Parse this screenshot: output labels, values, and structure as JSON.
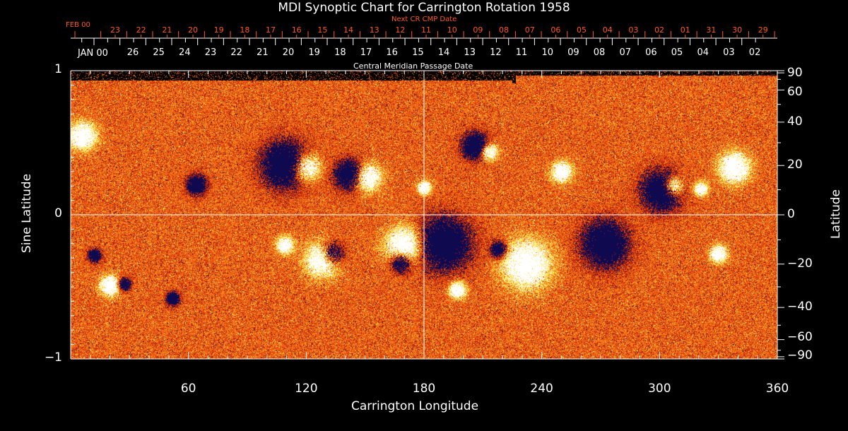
{
  "chart_data": {
    "type": "heatmap",
    "title": "MDI Synoptic Chart for Carrington Rotation 1958",
    "xlabel": "Carrington Longitude",
    "ylabel": "Sine Latitude",
    "y2label": "Latitude",
    "xlim": [
      0,
      360
    ],
    "ylim": [
      -1,
      1
    ],
    "x_ticks": [
      "60",
      "120",
      "180",
      "240",
      "300",
      "360"
    ],
    "x_tick_values": [
      60,
      120,
      180,
      240,
      300,
      360
    ],
    "y_ticks": [
      "1",
      "0",
      "−1"
    ],
    "y_tick_values": [
      1,
      0,
      -1
    ],
    "lat_ticks": [
      "90",
      "60",
      "40",
      "20",
      "0",
      "−20",
      "−40",
      "−60",
      "−90"
    ],
    "lat_tick_values": [
      90,
      60,
      40,
      20,
      0,
      -20,
      -40,
      -60,
      -90
    ],
    "top_axis": {
      "label": "Next CR CMP Date",
      "month_label": "FEB 00",
      "days": [
        "23",
        "22",
        "21",
        "20",
        "19",
        "18",
        "17",
        "16",
        "15",
        "14",
        "13",
        "12",
        "11",
        "10",
        "09",
        "08",
        "07",
        "06",
        "05",
        "04",
        "03",
        "02",
        "01",
        "31",
        "30",
        "29"
      ]
    },
    "second_axis": {
      "label": "Central Meridian Passage Date",
      "month_label": "JAN 00",
      "days": [
        "26",
        "25",
        "24",
        "23",
        "22",
        "21",
        "20",
        "19",
        "18",
        "17",
        "16",
        "15",
        "14",
        "13",
        "12",
        "11",
        "10",
        "09",
        "08",
        "07",
        "06",
        "05",
        "04",
        "03",
        "02"
      ]
    },
    "colors": {
      "background_field": "#e04a10",
      "positive": "#ffffff",
      "negative": "#0a0a50",
      "axis": "#ffffff",
      "date_axis": "#ff5a1a"
    },
    "active_regions": [
      {
        "lon": 6,
        "sinlat": 0.55,
        "polarity": "positive",
        "size": 8
      },
      {
        "lon": 64,
        "sinlat": 0.21,
        "polarity": "negative",
        "size": 6
      },
      {
        "lon": 109,
        "sinlat": 0.35,
        "polarity": "negative",
        "size": 14
      },
      {
        "lon": 120,
        "sinlat": 0.33,
        "polarity": "positive",
        "size": 8
      },
      {
        "lon": 142,
        "sinlat": 0.28,
        "polarity": "negative",
        "size": 9
      },
      {
        "lon": 151,
        "sinlat": 0.26,
        "polarity": "positive",
        "size": 8
      },
      {
        "lon": 180,
        "sinlat": 0.19,
        "polarity": "positive",
        "size": 4
      },
      {
        "lon": 206,
        "sinlat": 0.48,
        "polarity": "negative",
        "size": 8
      },
      {
        "lon": 213,
        "sinlat": 0.44,
        "polarity": "positive",
        "size": 5
      },
      {
        "lon": 250,
        "sinlat": 0.3,
        "polarity": "positive",
        "size": 6
      },
      {
        "lon": 301,
        "sinlat": 0.17,
        "polarity": "negative",
        "size": 12
      },
      {
        "lon": 307,
        "sinlat": 0.2,
        "polarity": "positive",
        "size": 6
      },
      {
        "lon": 321,
        "sinlat": 0.18,
        "polarity": "positive",
        "size": 4
      },
      {
        "lon": 338,
        "sinlat": 0.33,
        "polarity": "positive",
        "size": 9
      },
      {
        "lon": 12,
        "sinlat": -0.28,
        "polarity": "negative",
        "size": 4
      },
      {
        "lon": 20,
        "sinlat": -0.49,
        "polarity": "positive",
        "size": 6
      },
      {
        "lon": 27,
        "sinlat": -0.48,
        "polarity": "negative",
        "size": 4
      },
      {
        "lon": 109,
        "sinlat": -0.21,
        "polarity": "positive",
        "size": 5
      },
      {
        "lon": 128,
        "sinlat": -0.31,
        "polarity": "positive",
        "size": 10
      },
      {
        "lon": 133,
        "sinlat": -0.27,
        "polarity": "negative",
        "size": 7
      },
      {
        "lon": 170,
        "sinlat": -0.21,
        "polarity": "positive",
        "size": 11
      },
      {
        "lon": 168,
        "sinlat": -0.33,
        "polarity": "negative",
        "size": 6
      },
      {
        "lon": 190,
        "sinlat": -0.2,
        "polarity": "negative",
        "size": 16
      },
      {
        "lon": 232,
        "sinlat": -0.34,
        "polarity": "positive",
        "size": 14
      },
      {
        "lon": 218,
        "sinlat": -0.24,
        "polarity": "negative",
        "size": 5
      },
      {
        "lon": 272,
        "sinlat": -0.2,
        "polarity": "negative",
        "size": 14
      },
      {
        "lon": 330,
        "sinlat": -0.27,
        "polarity": "positive",
        "size": 5
      },
      {
        "lon": 197,
        "sinlat": -0.52,
        "polarity": "positive",
        "size": 5
      },
      {
        "lon": 52,
        "sinlat": -0.58,
        "polarity": "negative",
        "size": 4
      }
    ]
  }
}
